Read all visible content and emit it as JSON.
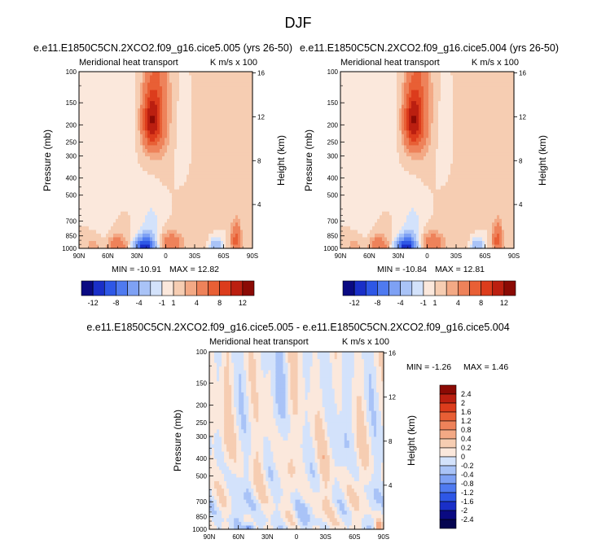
{
  "title": "DJF",
  "units": "K m/s x 100",
  "chart_data": [
    {
      "type": "heatmap",
      "case_title": "e.e11.E1850C5CN.2XCO2.f09_g16.cice5.005 (yrs 26-50)",
      "title": "Meridional heat transport",
      "units": "K m/s x 100",
      "xlabel": "",
      "ylabel": "Pressure (mb)",
      "y2label": "Height (km)",
      "x_ticks": [
        "90N",
        "60N",
        "30N",
        "0",
        "30S",
        "60S",
        "90S"
      ],
      "y_ticks": [
        100,
        150,
        200,
        250,
        300,
        400,
        500,
        700,
        850,
        1000
      ],
      "y2_ticks": [
        16,
        12,
        8,
        4
      ],
      "min_label": "MIN = -10.91",
      "max_label": "MAX = 12.82",
      "min": -10.91,
      "max": 12.82,
      "features": [
        {
          "lat": 15,
          "p": 190,
          "value": 8,
          "sx": 9,
          "sp": 70
        },
        {
          "lat": 8,
          "p": 150,
          "value": 3.5,
          "sx": 12,
          "sp": 150
        },
        {
          "lat": -40,
          "p": 250,
          "value": 0.8,
          "sx": 12,
          "sp": 300
        },
        {
          "lat": 45,
          "p": 180,
          "value": -0.8,
          "sx": 12,
          "sp": 150
        },
        {
          "lat": -20,
          "p": 250,
          "value": -0.5,
          "sx": 10,
          "sp": 150
        },
        {
          "lat": 22,
          "p": 990,
          "value": -11,
          "sx": 10,
          "sp": 130
        },
        {
          "lat": 15,
          "p": 800,
          "value": -1.6,
          "sx": 10,
          "sp": 300
        },
        {
          "lat": 50,
          "p": 980,
          "value": 3.5,
          "sx": 10,
          "sp": 150
        },
        {
          "lat": 75,
          "p": 960,
          "value": 1.5,
          "sx": 10,
          "sp": 150
        },
        {
          "lat": 68,
          "p": 780,
          "value": -0.6,
          "sx": 12,
          "sp": 250
        },
        {
          "lat": -5,
          "p": 930,
          "value": 3.5,
          "sx": 12,
          "sp": 120
        },
        {
          "lat": -52,
          "p": 960,
          "value": -3.5,
          "sx": 6,
          "sp": 100
        },
        {
          "lat": -73,
          "p": 890,
          "value": 5,
          "sx": 5,
          "sp": 180
        },
        {
          "lat": -35,
          "p": 650,
          "value": 0.8,
          "sx": 14,
          "sp": 250
        }
      ]
    },
    {
      "type": "heatmap",
      "case_title": "e.e11.E1850C5CN.2XCO2.f09_g16.cice5.004 (yrs 26-50)",
      "title": "Meridional heat transport",
      "units": "K m/s x 100",
      "xlabel": "",
      "ylabel": "Pressure (mb)",
      "y2label": "Height (km)",
      "x_ticks": [
        "90N",
        "60N",
        "30N",
        "0",
        "30S",
        "60S",
        "90S"
      ],
      "y_ticks": [
        100,
        150,
        200,
        250,
        300,
        400,
        500,
        700,
        850,
        1000
      ],
      "y2_ticks": [
        16,
        12,
        8,
        4
      ],
      "min_label": "MIN = -10.84",
      "max_label": "MAX = 12.81",
      "min": -10.84,
      "max": 12.81,
      "features": [
        {
          "lat": 15,
          "p": 190,
          "value": 8,
          "sx": 9,
          "sp": 70
        },
        {
          "lat": 8,
          "p": 150,
          "value": 3.5,
          "sx": 12,
          "sp": 150
        },
        {
          "lat": -40,
          "p": 250,
          "value": 0.8,
          "sx": 12,
          "sp": 300
        },
        {
          "lat": 45,
          "p": 180,
          "value": -0.8,
          "sx": 12,
          "sp": 150
        },
        {
          "lat": -20,
          "p": 250,
          "value": -0.5,
          "sx": 10,
          "sp": 150
        },
        {
          "lat": 22,
          "p": 990,
          "value": -11,
          "sx": 10,
          "sp": 130
        },
        {
          "lat": 15,
          "p": 800,
          "value": -1.6,
          "sx": 10,
          "sp": 300
        },
        {
          "lat": 50,
          "p": 980,
          "value": 3.5,
          "sx": 10,
          "sp": 150
        },
        {
          "lat": 75,
          "p": 960,
          "value": 1.5,
          "sx": 10,
          "sp": 150
        },
        {
          "lat": 68,
          "p": 780,
          "value": -0.6,
          "sx": 12,
          "sp": 250
        },
        {
          "lat": -5,
          "p": 930,
          "value": 3.5,
          "sx": 12,
          "sp": 120
        },
        {
          "lat": -52,
          "p": 960,
          "value": -3.5,
          "sx": 6,
          "sp": 100
        },
        {
          "lat": -73,
          "p": 890,
          "value": 5,
          "sx": 5,
          "sp": 180
        },
        {
          "lat": -35,
          "p": 650,
          "value": 0.8,
          "sx": 14,
          "sp": 250
        }
      ]
    },
    {
      "type": "heatmap",
      "case_title": "e.e11.E1850C5CN.2XCO2.f09_g16.cice5.005 - e.e11.E1850C5CN.2XCO2.f09_g16.cice5.004",
      "title": "Meridional heat transport",
      "units": "K m/s x 100",
      "xlabel": "",
      "ylabel": "Pressure (mb)",
      "y2label": "Height (km)",
      "x_ticks": [
        "90N",
        "60N",
        "30N",
        "0",
        "30S",
        "60S",
        "90S"
      ],
      "y_ticks": [
        100,
        150,
        200,
        250,
        300,
        400,
        500,
        700,
        850,
        1000
      ],
      "y2_ticks": [
        16,
        12,
        8,
        4
      ],
      "min_label": "MIN = -1.26",
      "max_label": "MAX =  1.46",
      "min": -1.26,
      "max": 1.46,
      "features": [
        {
          "lat": 72,
          "p": 300,
          "value": 0.25,
          "sx": 6,
          "sp": 400
        },
        {
          "lat": 40,
          "p": 450,
          "value": 0.22,
          "sx": 8,
          "sp": 300
        },
        {
          "lat": 5,
          "p": 350,
          "value": 0.25,
          "sx": 6,
          "sp": 350
        },
        {
          "lat": -28,
          "p": 600,
          "value": 0.22,
          "sx": 8,
          "sp": 450
        },
        {
          "lat": -65,
          "p": 500,
          "value": 0.22,
          "sx": 7,
          "sp": 400
        },
        {
          "lat": 55,
          "p": 750,
          "value": -0.22,
          "sx": 10,
          "sp": 250
        },
        {
          "lat": 20,
          "p": 200,
          "value": -0.22,
          "sx": 6,
          "sp": 150
        },
        {
          "lat": -10,
          "p": 820,
          "value": -0.22,
          "sx": 8,
          "sp": 200
        },
        {
          "lat": -50,
          "p": 250,
          "value": -0.22,
          "sx": 6,
          "sp": 200
        },
        {
          "lat": -80,
          "p": 700,
          "value": -0.22,
          "sx": 5,
          "sp": 250
        },
        {
          "lat": 48,
          "p": 1000,
          "value": -0.9,
          "sx": 4,
          "sp": 60
        },
        {
          "lat": -85,
          "p": 980,
          "value": 0.6,
          "sx": 3,
          "sp": 60
        }
      ]
    }
  ],
  "colorbar_top": {
    "labels": [
      "-12",
      "-8",
      "-4",
      "-1",
      "1",
      "4",
      "8",
      "12"
    ],
    "colors": [
      "#0a0a82",
      "#1a2fc8",
      "#2e57e6",
      "#4f7af0",
      "#7ea1f4",
      "#a9c3f7",
      "#d3e2fb",
      "#fbe8dc",
      "#f6cdb2",
      "#f3a985",
      "#ee825a",
      "#e85f35",
      "#dc3c1c",
      "#bb1f10",
      "#8b0a04"
    ]
  },
  "colorbar_diff": {
    "labels": [
      "2.4",
      "2",
      "1.6",
      "1.2",
      "0.8",
      "0.4",
      "0.2",
      "0",
      "-0.2",
      "-0.4",
      "-0.8",
      "-1.2",
      "-1.6",
      "-2",
      "-2.4"
    ],
    "colors": [
      "#8b0a04",
      "#bb1f10",
      "#dc3c1c",
      "#e85f35",
      "#ee825a",
      "#f3a985",
      "#f6cdb2",
      "#fbe8dc",
      "#d3e2fb",
      "#a9c3f7",
      "#7ea1f4",
      "#4f7af0",
      "#2e57e6",
      "#1a2fc8",
      "#0a0a82",
      "#040450"
    ]
  }
}
